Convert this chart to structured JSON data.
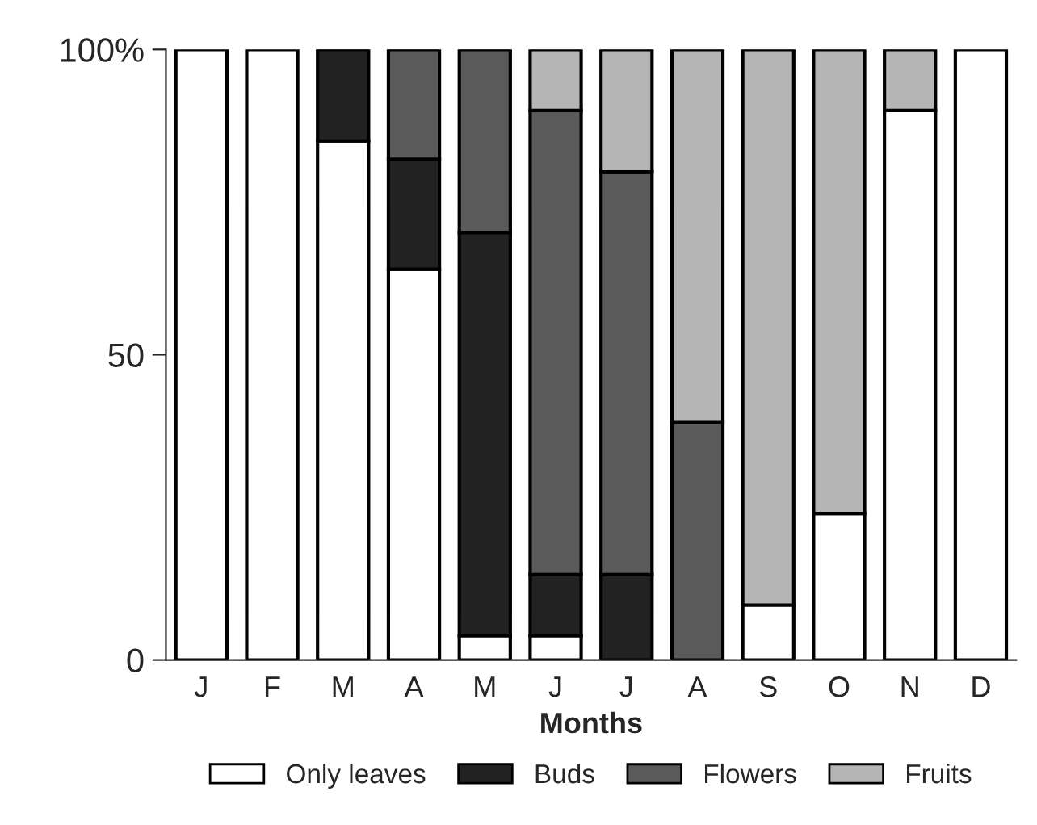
{
  "chart_data": {
    "type": "bar",
    "stacked": true,
    "xlabel": "Months",
    "categories": [
      "J",
      "F",
      "M",
      "A",
      "M",
      "J",
      "J",
      "A",
      "S",
      "O",
      "N",
      "D"
    ],
    "series": [
      {
        "name": "Only leaves",
        "color": "#ffffff",
        "values": [
          100,
          100,
          85,
          64,
          4,
          4,
          0,
          0,
          9,
          24,
          90,
          100
        ]
      },
      {
        "name": "Buds",
        "color": "#222222",
        "values": [
          0,
          0,
          15,
          18,
          66,
          10,
          14,
          0,
          0,
          0,
          0,
          0
        ]
      },
      {
        "name": "Flowers",
        "color": "#5a5a5a",
        "values": [
          0,
          0,
          0,
          18,
          30,
          76,
          66,
          39,
          0,
          0,
          0,
          0
        ]
      },
      {
        "name": "Fruits",
        "color": "#b5b5b5",
        "values": [
          0,
          0,
          0,
          0,
          0,
          10,
          20,
          61,
          91,
          76,
          10,
          0
        ]
      }
    ],
    "ylim": [
      0,
      100
    ],
    "yticks": [
      0,
      50,
      {
        "value": 100,
        "label": "100%"
      }
    ],
    "grid": false,
    "legend": "bottom"
  }
}
